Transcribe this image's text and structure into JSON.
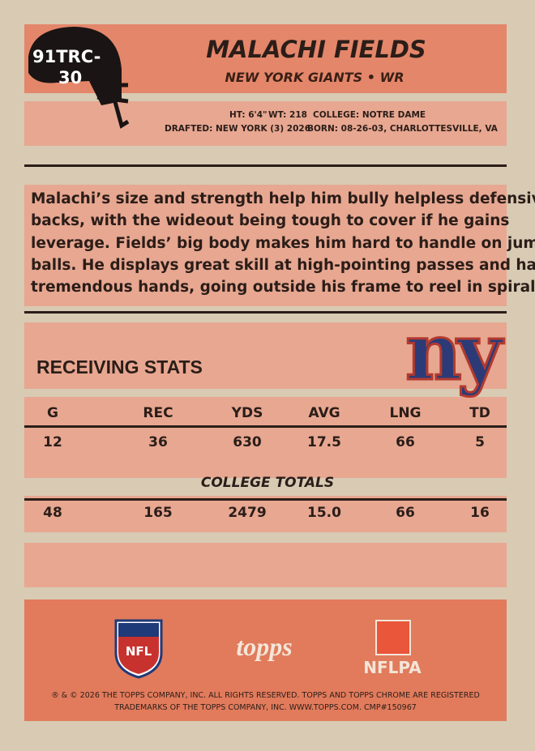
{
  "card_number": [
    "91TRC-",
    "30"
  ],
  "player": {
    "name": "MALACHI FIELDS",
    "team_position": "NEW YORK GIANTS • WR"
  },
  "info": {
    "lines": [
      [
        "HT: 6'4\"",
        "WT: 218",
        "COLLEGE: NOTRE DAME"
      ],
      [
        "DRAFTED: NEW YORK (3) 2026",
        "BORN: 08-26-03, CHARLOTTESVILLE, VA"
      ]
    ]
  },
  "bio": {
    "lines": [
      "Malachi’s size and strength help him bully helpless defensive",
      "backs, with the wideout being tough to cover if he gains",
      "leverage. Fields’ big body makes him hard to handle on jump",
      "balls. He displays great skill at high-pointing passes and has",
      "tremendous hands, going outside his frame to reel in spirals."
    ]
  },
  "stats": {
    "title": "RECEIVING STATS",
    "team_logo": "ny",
    "headers": [
      "G",
      "REC",
      "YDS",
      "AVG",
      "LNG",
      "TD"
    ],
    "season": [
      "12",
      "36",
      "630",
      "17.5",
      "66",
      "5"
    ],
    "college_label": "COLLEGE TOTALS",
    "college": [
      "48",
      "165",
      "2479",
      "15.0",
      "66",
      "16"
    ]
  },
  "footer": {
    "logos": [
      "NFL",
      "topps",
      "NFLPA"
    ],
    "legal": [
      "® & © 2026 THE TOPPS COMPANY, INC. ALL RIGHTS RESERVED. TOPPS AND TOPPS CHROME ARE REGISTERED",
      "TRADEMARKS OF THE TOPPS COMPANY, INC. WWW.TOPPS.COM. CMP#150967"
    ]
  }
}
